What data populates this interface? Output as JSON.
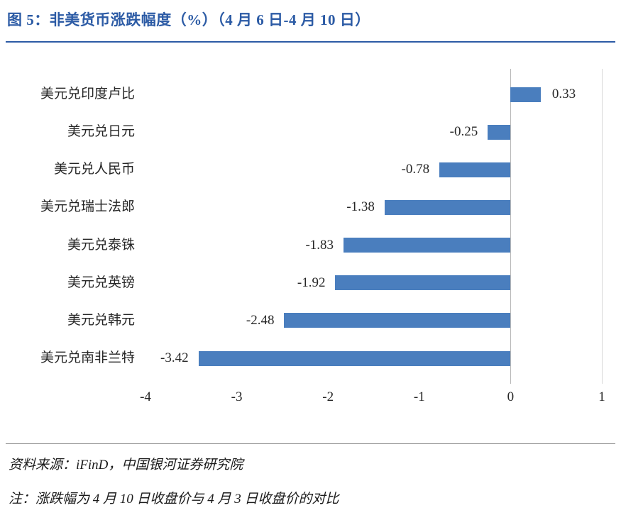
{
  "header": {
    "title": "图 5：非美货币涨跌幅度（%）（4 月 6 日-4 月 10 日）"
  },
  "chart_data": {
    "type": "bar",
    "orientation": "horizontal",
    "title": "非美货币涨跌幅度（%）（4 月 6 日-4 月 10 日）",
    "categories": [
      "美元兑印度卢比",
      "美元兑日元",
      "美元兑人民币",
      "美元兑瑞士法郎",
      "美元兑泰铢",
      "美元兑英镑",
      "美元兑韩元",
      "美元兑南非兰特"
    ],
    "values": [
      0.33,
      -0.25,
      -0.78,
      -1.38,
      -1.83,
      -1.92,
      -2.48,
      -3.42
    ],
    "value_labels": [
      "0.33",
      "-0.25",
      "-0.78",
      "-1.38",
      "-1.83",
      "-1.92",
      "-2.48",
      "-3.42"
    ],
    "xlim": [
      -4,
      1
    ],
    "x_ticks": [
      "-4",
      "-3",
      "-2",
      "-1",
      "0",
      "1"
    ],
    "grid": false,
    "legend": "none",
    "bar_color": "#4A7EBE"
  },
  "footer": {
    "source": "资料来源：iFinD，中国银河证券研究院",
    "note": "注：涨跌幅为 4 月 10 日收盘价与 4 月 3 日收盘价的对比"
  },
  "colors": {
    "title_blue": "#2C5BA5",
    "bar_blue": "#4A7EBE",
    "axis_gray": "#B8B8B8",
    "divider_gray": "#8C8C8C"
  }
}
